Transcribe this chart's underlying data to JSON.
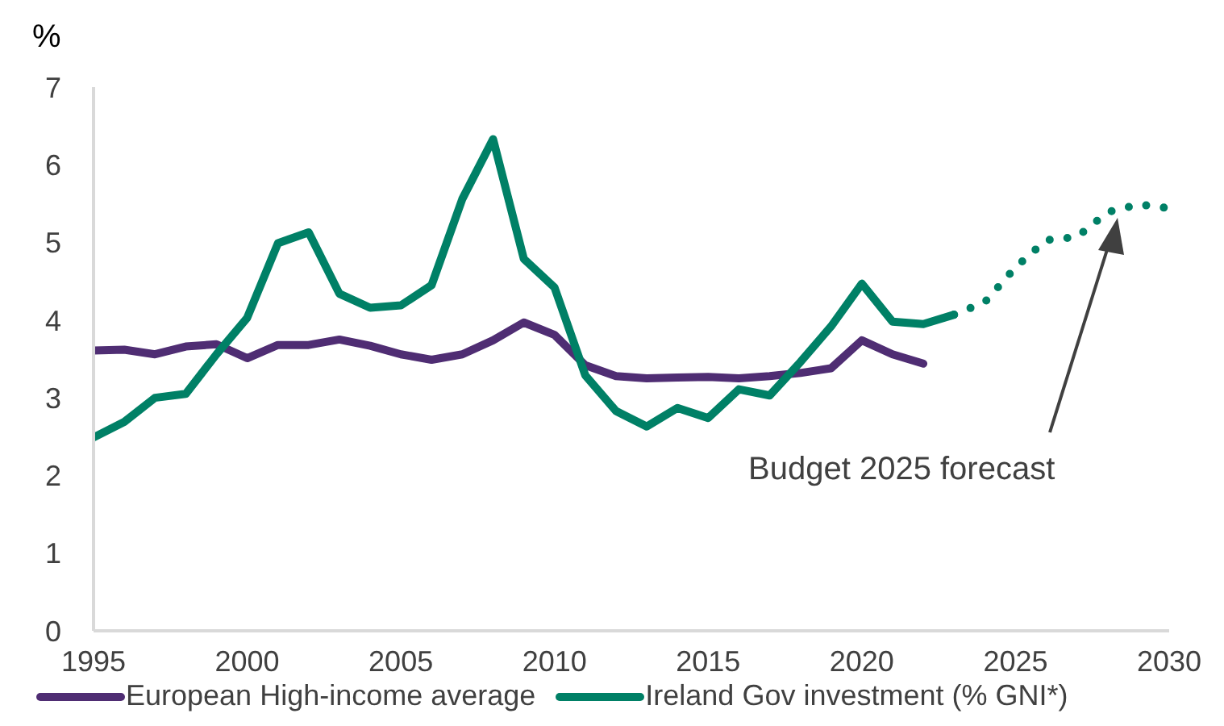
{
  "chart_data": {
    "type": "line",
    "ylabel": "%",
    "xlim": [
      1995,
      2030
    ],
    "xticks": [
      1995,
      2000,
      2005,
      2010,
      2015,
      2020,
      2025,
      2030
    ],
    "ylim": [
      0,
      7
    ],
    "yticks": [
      0,
      1,
      2,
      3,
      4,
      5,
      6,
      7
    ],
    "grid": false,
    "legend": "bottom",
    "marker": "none",
    "series": [
      {
        "name": "European High-income average",
        "color": "#4f2d73",
        "line_style": "solid",
        "x": [
          1995,
          1996,
          1997,
          1998,
          1999,
          2000,
          2001,
          2002,
          2003,
          2004,
          2005,
          2006,
          2007,
          2008,
          2009,
          2010,
          2011,
          2012,
          2013,
          2014,
          2015,
          2016,
          2017,
          2018,
          2019,
          2020,
          2021,
          2022
        ],
        "values": [
          3.61,
          3.62,
          3.56,
          3.66,
          3.69,
          3.51,
          3.68,
          3.68,
          3.75,
          3.67,
          3.56,
          3.49,
          3.56,
          3.74,
          3.97,
          3.81,
          3.42,
          3.28,
          3.25,
          3.26,
          3.27,
          3.25,
          3.28,
          3.32,
          3.38,
          3.74,
          3.56,
          3.44
        ]
      },
      {
        "name": "Ireland Gov investment (% GNI*)",
        "color": "#008066",
        "line_style": "solid",
        "x": [
          1995,
          1996,
          1997,
          1998,
          1999,
          2000,
          2001,
          2002,
          2003,
          2004,
          2005,
          2006,
          2007,
          2008,
          2009,
          2010,
          2011,
          2012,
          2013,
          2014,
          2015,
          2016,
          2017,
          2018,
          2019,
          2020,
          2021,
          2022,
          2023
        ],
        "values": [
          2.49,
          2.69,
          3.0,
          3.05,
          3.56,
          4.03,
          4.99,
          5.13,
          4.34,
          4.16,
          4.19,
          4.45,
          5.56,
          6.33,
          4.79,
          4.42,
          3.29,
          2.83,
          2.63,
          2.87,
          2.74,
          3.11,
          3.03,
          3.46,
          3.92,
          4.47,
          3.98,
          3.95,
          4.07
        ]
      },
      {
        "color": "#008066",
        "line_style": "dotted",
        "x": [
          2023,
          2024,
          2025,
          2026,
          2027,
          2028,
          2029,
          2030
        ],
        "values": [
          4.07,
          4.23,
          4.68,
          5.03,
          5.07,
          5.39,
          5.49,
          5.44
        ]
      }
    ],
    "annotations": [
      "Budget 2025 forecast"
    ]
  }
}
